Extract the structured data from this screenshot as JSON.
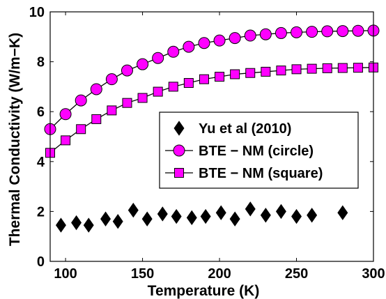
{
  "chart_data": {
    "type": "scatter",
    "title": "",
    "xlabel": "Temperature (K)",
    "ylabel": "Thermal Conductivity (W/m−K)",
    "xlim": [
      90,
      300
    ],
    "ylim": [
      0,
      10
    ],
    "xticks": [
      "100",
      "150",
      "200",
      "250",
      "300"
    ],
    "yticks": [
      "0",
      "2",
      "4",
      "6",
      "8",
      "10"
    ],
    "xtick_values": [
      100,
      150,
      200,
      250,
      300
    ],
    "ytick_values": [
      0,
      2,
      4,
      6,
      8,
      10
    ],
    "grid": false,
    "legend_position": "center-right",
    "series": [
      {
        "name": "Yu et al (2010)",
        "marker": "diamond",
        "line": false,
        "color": "#000000",
        "x": [
          97,
          107,
          115,
          126,
          134,
          144,
          153,
          163,
          172,
          182,
          191,
          201,
          210,
          220,
          230,
          240,
          250,
          260,
          280
        ],
        "y": [
          1.45,
          1.55,
          1.45,
          1.7,
          1.6,
          2.05,
          1.7,
          1.9,
          1.8,
          1.75,
          1.8,
          1.95,
          1.7,
          2.1,
          1.85,
          2.0,
          1.8,
          1.85,
          1.95
        ]
      },
      {
        "name": "BTE − NM (circle)",
        "marker": "circle",
        "line": true,
        "color": "#ff00ff",
        "x": [
          90,
          100,
          110,
          120,
          130,
          140,
          150,
          160,
          170,
          180,
          190,
          200,
          210,
          220,
          230,
          240,
          250,
          260,
          270,
          280,
          290,
          300
        ],
        "y": [
          5.3,
          5.9,
          6.45,
          6.9,
          7.3,
          7.65,
          7.9,
          8.15,
          8.4,
          8.6,
          8.75,
          8.85,
          8.95,
          9.05,
          9.1,
          9.15,
          9.18,
          9.2,
          9.22,
          9.23,
          9.24,
          9.25
        ]
      },
      {
        "name": "BTE − NM (square)",
        "marker": "square",
        "line": true,
        "color": "#ff00ff",
        "x": [
          90,
          100,
          110,
          120,
          130,
          140,
          150,
          160,
          170,
          180,
          190,
          200,
          210,
          220,
          230,
          240,
          250,
          260,
          270,
          280,
          290,
          300
        ],
        "y": [
          4.35,
          4.85,
          5.3,
          5.7,
          6.05,
          6.35,
          6.55,
          6.8,
          7.0,
          7.15,
          7.3,
          7.4,
          7.5,
          7.55,
          7.6,
          7.65,
          7.7,
          7.72,
          7.74,
          7.75,
          7.76,
          7.77
        ]
      }
    ]
  }
}
